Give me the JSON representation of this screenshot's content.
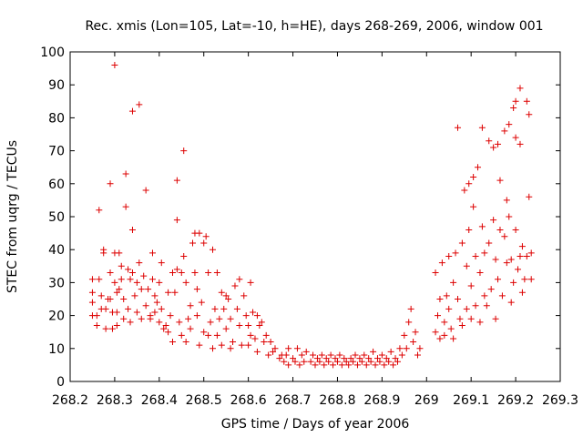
{
  "chart_data": {
    "type": "scatter",
    "title": "Rec. xmis (Lon=105, Lat=-10, h=HE), days 268-269, 2006, window 001",
    "xlabel": "GPS time / Days of year 2006",
    "ylabel": "STEC from uqrg / TECUs",
    "xlim": [
      268.2,
      269.3
    ],
    "ylim": [
      0,
      100
    ],
    "x_ticks": [
      268.2,
      268.3,
      268.4,
      268.5,
      268.6,
      268.7,
      268.8,
      268.9,
      269,
      269.1,
      269.2,
      269.3
    ],
    "x_tick_labels": [
      "268.2",
      "268.3",
      "268.4",
      "268.5",
      "268.6",
      "268.7",
      "268.8",
      "268.9",
      "269",
      "269.1",
      "269.2",
      "269.3"
    ],
    "y_ticks": [
      0,
      10,
      20,
      30,
      40,
      50,
      60,
      70,
      80,
      90,
      100
    ],
    "y_tick_labels": [
      "0",
      "10",
      "20",
      "30",
      "40",
      "50",
      "60",
      "70",
      "80",
      "90",
      "100"
    ],
    "grid": false,
    "marker": "+",
    "color": "#dd0000",
    "series": [
      {
        "name": "STEC",
        "points": [
          [
            268.25,
            31
          ],
          [
            268.25,
            27
          ],
          [
            268.25,
            24
          ],
          [
            268.25,
            20
          ],
          [
            268.26,
            20
          ],
          [
            268.26,
            17
          ],
          [
            268.265,
            52
          ],
          [
            268.265,
            31
          ],
          [
            268.27,
            22
          ],
          [
            268.27,
            26
          ],
          [
            268.275,
            40
          ],
          [
            268.275,
            39
          ],
          [
            268.28,
            22
          ],
          [
            268.28,
            16
          ],
          [
            268.285,
            25
          ],
          [
            268.29,
            60
          ],
          [
            268.29,
            33
          ],
          [
            268.29,
            25
          ],
          [
            268.295,
            21
          ],
          [
            268.295,
            16
          ],
          [
            268.3,
            96
          ],
          [
            268.3,
            39
          ],
          [
            268.3,
            30
          ],
          [
            268.305,
            27
          ],
          [
            268.305,
            21
          ],
          [
            268.305,
            17
          ],
          [
            268.31,
            39
          ],
          [
            268.31,
            28
          ],
          [
            268.315,
            35
          ],
          [
            268.315,
            31
          ],
          [
            268.32,
            25
          ],
          [
            268.32,
            19
          ],
          [
            268.325,
            63
          ],
          [
            268.325,
            53
          ],
          [
            268.33,
            34
          ],
          [
            268.33,
            22
          ],
          [
            268.335,
            31
          ],
          [
            268.335,
            18
          ],
          [
            268.34,
            82
          ],
          [
            268.34,
            46
          ],
          [
            268.34,
            33
          ],
          [
            268.345,
            26
          ],
          [
            268.35,
            30
          ],
          [
            268.35,
            21
          ],
          [
            268.355,
            84
          ],
          [
            268.355,
            36
          ],
          [
            268.36,
            28
          ],
          [
            268.36,
            19
          ],
          [
            268.365,
            32
          ],
          [
            268.37,
            58
          ],
          [
            268.37,
            23
          ],
          [
            268.375,
            28
          ],
          [
            268.38,
            20
          ],
          [
            268.38,
            19
          ],
          [
            268.385,
            39
          ],
          [
            268.385,
            31
          ],
          [
            268.39,
            26
          ],
          [
            268.39,
            21
          ],
          [
            268.395,
            24
          ],
          [
            268.4,
            30
          ],
          [
            268.4,
            18
          ],
          [
            268.405,
            36
          ],
          [
            268.405,
            22
          ],
          [
            268.41,
            16
          ],
          [
            268.415,
            17
          ],
          [
            268.42,
            27
          ],
          [
            268.42,
            15
          ],
          [
            268.425,
            20
          ],
          [
            268.43,
            33
          ],
          [
            268.43,
            12
          ],
          [
            268.435,
            27
          ],
          [
            268.44,
            61
          ],
          [
            268.44,
            49
          ],
          [
            268.44,
            34
          ],
          [
            268.445,
            18
          ],
          [
            268.45,
            33
          ],
          [
            268.45,
            14
          ],
          [
            268.455,
            70
          ],
          [
            268.455,
            38
          ],
          [
            268.46,
            30
          ],
          [
            268.46,
            12
          ],
          [
            268.465,
            19
          ],
          [
            268.47,
            23
          ],
          [
            268.47,
            16
          ],
          [
            268.475,
            42
          ],
          [
            268.48,
            45
          ],
          [
            268.48,
            33
          ],
          [
            268.485,
            28
          ],
          [
            268.485,
            20
          ],
          [
            268.49,
            45
          ],
          [
            268.49,
            11
          ],
          [
            268.495,
            24
          ],
          [
            268.5,
            42
          ],
          [
            268.5,
            15
          ],
          [
            268.505,
            44
          ],
          [
            268.51,
            33
          ],
          [
            268.51,
            14
          ],
          [
            268.515,
            18
          ],
          [
            268.52,
            40
          ],
          [
            268.52,
            10
          ],
          [
            268.525,
            22
          ],
          [
            268.53,
            33
          ],
          [
            268.53,
            14
          ],
          [
            268.535,
            19
          ],
          [
            268.54,
            27
          ],
          [
            268.54,
            11
          ],
          [
            268.545,
            22
          ],
          [
            268.55,
            26
          ],
          [
            268.55,
            16
          ],
          [
            268.555,
            25
          ],
          [
            268.56,
            19
          ],
          [
            268.56,
            10
          ],
          [
            268.565,
            12
          ],
          [
            268.57,
            29
          ],
          [
            268.575,
            22
          ],
          [
            268.58,
            31
          ],
          [
            268.58,
            17
          ],
          [
            268.585,
            11
          ],
          [
            268.59,
            26
          ],
          [
            268.595,
            20
          ],
          [
            268.6,
            17
          ],
          [
            268.6,
            11
          ],
          [
            268.605,
            30
          ],
          [
            268.605,
            14
          ],
          [
            268.61,
            21
          ],
          [
            268.615,
            13
          ],
          [
            268.62,
            20
          ],
          [
            268.62,
            9
          ],
          [
            268.625,
            17
          ],
          [
            268.63,
            18
          ],
          [
            268.635,
            12
          ],
          [
            268.64,
            14
          ],
          [
            268.645,
            8
          ],
          [
            268.65,
            12
          ],
          [
            268.655,
            9
          ],
          [
            268.66,
            10
          ],
          [
            268.67,
            7
          ],
          [
            268.675,
            8
          ],
          [
            268.68,
            6
          ],
          [
            268.685,
            8
          ],
          [
            268.69,
            10
          ],
          [
            268.69,
            5
          ],
          [
            268.7,
            7
          ],
          [
            268.705,
            6
          ],
          [
            268.71,
            10
          ],
          [
            268.715,
            5
          ],
          [
            268.72,
            8
          ],
          [
            268.725,
            6
          ],
          [
            268.73,
            9
          ],
          [
            268.74,
            6
          ],
          [
            268.745,
            8
          ],
          [
            268.75,
            5
          ],
          [
            268.755,
            7
          ],
          [
            268.76,
            6
          ],
          [
            268.765,
            8
          ],
          [
            268.77,
            5
          ],
          [
            268.775,
            7
          ],
          [
            268.78,
            6
          ],
          [
            268.785,
            8
          ],
          [
            268.79,
            5
          ],
          [
            268.795,
            7
          ],
          [
            268.8,
            6
          ],
          [
            268.805,
            8
          ],
          [
            268.81,
            5
          ],
          [
            268.815,
            7
          ],
          [
            268.82,
            6
          ],
          [
            268.825,
            5
          ],
          [
            268.83,
            7
          ],
          [
            268.835,
            6
          ],
          [
            268.84,
            8
          ],
          [
            268.845,
            5
          ],
          [
            268.85,
            7
          ],
          [
            268.855,
            6
          ],
          [
            268.86,
            8
          ],
          [
            268.865,
            5
          ],
          [
            268.87,
            7
          ],
          [
            268.875,
            6
          ],
          [
            268.88,
            9
          ],
          [
            268.885,
            5
          ],
          [
            268.89,
            7
          ],
          [
            268.895,
            6
          ],
          [
            268.9,
            8
          ],
          [
            268.905,
            5
          ],
          [
            268.91,
            7
          ],
          [
            268.915,
            6
          ],
          [
            268.92,
            9
          ],
          [
            268.925,
            5
          ],
          [
            268.93,
            7
          ],
          [
            268.935,
            6
          ],
          [
            268.94,
            10
          ],
          [
            268.945,
            8
          ],
          [
            268.95,
            14
          ],
          [
            268.955,
            10
          ],
          [
            268.96,
            18
          ],
          [
            268.965,
            22
          ],
          [
            268.97,
            12
          ],
          [
            268.975,
            15
          ],
          [
            268.98,
            8
          ],
          [
            268.985,
            10
          ],
          [
            269.02,
            33
          ],
          [
            269.02,
            15
          ],
          [
            269.025,
            20
          ],
          [
            269.03,
            25
          ],
          [
            269.03,
            13
          ],
          [
            269.035,
            36
          ],
          [
            269.04,
            18
          ],
          [
            269.04,
            14
          ],
          [
            269.045,
            26
          ],
          [
            269.05,
            38
          ],
          [
            269.05,
            22
          ],
          [
            269.055,
            16
          ],
          [
            269.06,
            30
          ],
          [
            269.06,
            13
          ],
          [
            269.065,
            39
          ],
          [
            269.07,
            77
          ],
          [
            269.07,
            25
          ],
          [
            269.075,
            19
          ],
          [
            269.08,
            42
          ],
          [
            269.08,
            17
          ],
          [
            269.085,
            58
          ],
          [
            269.09,
            35
          ],
          [
            269.09,
            22
          ],
          [
            269.095,
            60
          ],
          [
            269.095,
            46
          ],
          [
            269.1,
            29
          ],
          [
            269.1,
            19
          ],
          [
            269.105,
            62
          ],
          [
            269.105,
            53
          ],
          [
            269.11,
            38
          ],
          [
            269.11,
            23
          ],
          [
            269.115,
            65
          ],
          [
            269.12,
            33
          ],
          [
            269.12,
            18
          ],
          [
            269.125,
            77
          ],
          [
            269.125,
            47
          ],
          [
            269.13,
            39
          ],
          [
            269.13,
            26
          ],
          [
            269.135,
            23
          ],
          [
            269.14,
            73
          ],
          [
            269.14,
            42
          ],
          [
            269.145,
            28
          ],
          [
            269.15,
            71
          ],
          [
            269.15,
            49
          ],
          [
            269.155,
            37
          ],
          [
            269.155,
            19
          ],
          [
            269.16,
            72
          ],
          [
            269.16,
            31
          ],
          [
            269.165,
            61
          ],
          [
            269.165,
            46
          ],
          [
            269.17,
            26
          ],
          [
            269.175,
            76
          ],
          [
            269.175,
            44
          ],
          [
            269.18,
            55
          ],
          [
            269.18,
            36
          ],
          [
            269.185,
            78
          ],
          [
            269.185,
            50
          ],
          [
            269.19,
            37
          ],
          [
            269.19,
            24
          ],
          [
            269.195,
            83
          ],
          [
            269.195,
            30
          ],
          [
            269.2,
            85
          ],
          [
            269.2,
            74
          ],
          [
            269.2,
            46
          ],
          [
            269.205,
            34
          ],
          [
            269.21,
            89
          ],
          [
            269.21,
            72
          ],
          [
            269.21,
            38
          ],
          [
            269.215,
            41
          ],
          [
            269.215,
            27
          ],
          [
            269.22,
            31
          ],
          [
            269.225,
            85
          ],
          [
            269.225,
            38
          ],
          [
            269.23,
            81
          ],
          [
            269.23,
            56
          ],
          [
            269.235,
            39
          ],
          [
            269.235,
            31
          ]
        ]
      }
    ]
  }
}
